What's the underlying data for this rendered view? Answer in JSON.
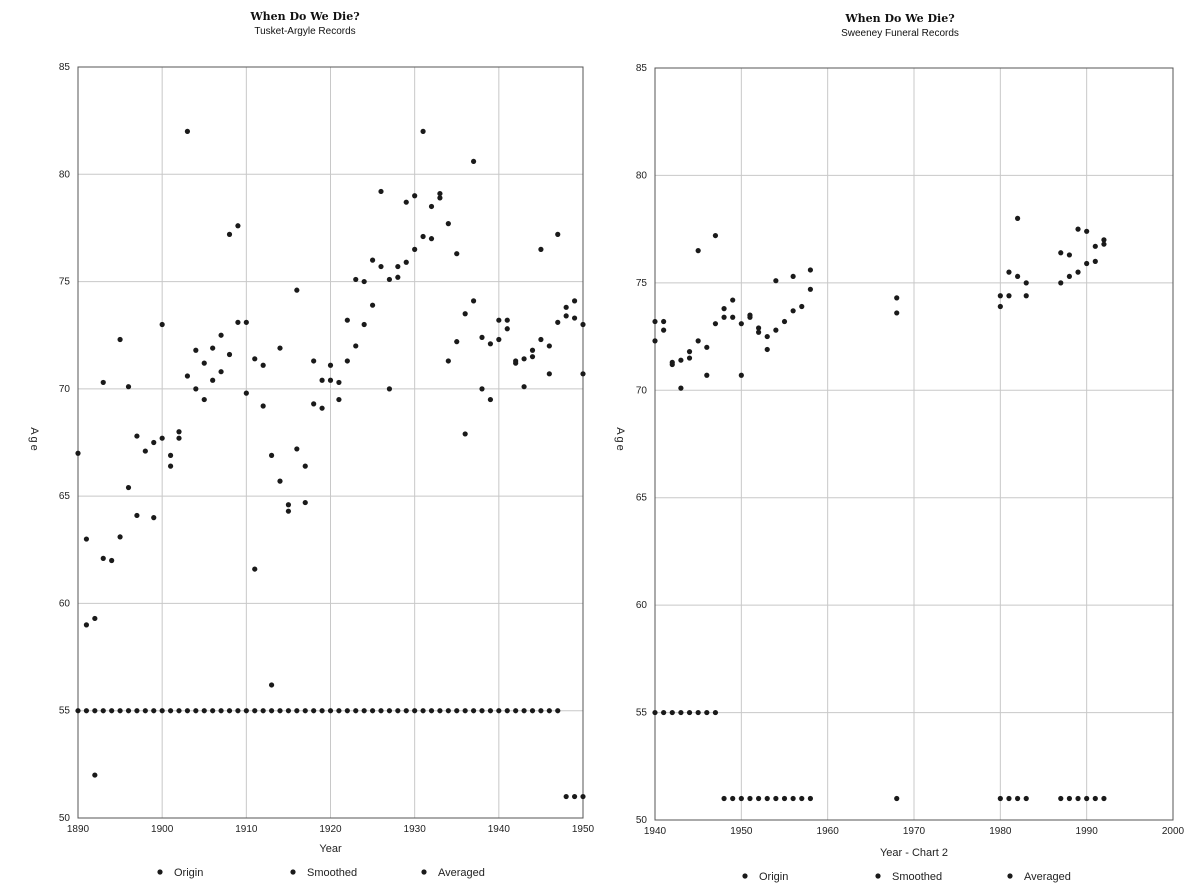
{
  "chart_data": [
    {
      "type": "scatter",
      "title": "When Do We Die?",
      "subtitle": "Tusket-Argyle Records",
      "xlabel": "Year",
      "ylabel": "Age",
      "xlim": [
        1890,
        1950
      ],
      "ylim": [
        50,
        85
      ],
      "xticks": [
        "1890",
        "1900",
        "1910",
        "1920",
        "1930",
        "1940",
        "1950"
      ],
      "yticks": [
        "50",
        "55",
        "60",
        "65",
        "70",
        "75",
        "80",
        "85"
      ],
      "grid": true,
      "legend": {
        "placement": "bottom",
        "entries": [
          "Origin",
          "Smoothed",
          "Averaged"
        ]
      },
      "points": [
        [
          1890,
          67.0
        ],
        [
          1891,
          63.0
        ],
        [
          1891,
          59.0
        ],
        [
          1892,
          59.3
        ],
        [
          1892,
          52.0
        ],
        [
          1893,
          70.3
        ],
        [
          1893,
          62.1
        ],
        [
          1894,
          62.0
        ],
        [
          1895,
          72.3
        ],
        [
          1895,
          63.1
        ],
        [
          1896,
          70.1
        ],
        [
          1896,
          65.4
        ],
        [
          1897,
          67.8
        ],
        [
          1897,
          64.1
        ],
        [
          1898,
          67.1
        ],
        [
          1899,
          67.5
        ],
        [
          1899,
          64.0
        ],
        [
          1900,
          73.0
        ],
        [
          1900,
          67.7
        ],
        [
          1901,
          66.9
        ],
        [
          1901,
          66.4
        ],
        [
          1902,
          68.0
        ],
        [
          1902,
          67.7
        ],
        [
          1903,
          82.0
        ],
        [
          1903,
          70.6
        ],
        [
          1904,
          71.8
        ],
        [
          1904,
          70.0
        ],
        [
          1905,
          71.2
        ],
        [
          1905,
          69.5
        ],
        [
          1906,
          71.9
        ],
        [
          1906,
          70.4
        ],
        [
          1907,
          72.5
        ],
        [
          1907,
          70.8
        ],
        [
          1908,
          77.2
        ],
        [
          1908,
          71.6
        ],
        [
          1909,
          77.6
        ],
        [
          1909,
          73.1
        ],
        [
          1910,
          73.1
        ],
        [
          1910,
          69.8
        ],
        [
          1911,
          71.4
        ],
        [
          1911,
          61.6
        ],
        [
          1912,
          71.1
        ],
        [
          1912,
          69.2
        ],
        [
          1913,
          66.9
        ],
        [
          1913,
          56.2
        ],
        [
          1914,
          71.9
        ],
        [
          1914,
          65.7
        ],
        [
          1915,
          64.6
        ],
        [
          1915,
          64.3
        ],
        [
          1916,
          74.6
        ],
        [
          1916,
          67.2
        ],
        [
          1917,
          66.4
        ],
        [
          1917,
          64.7
        ],
        [
          1918,
          71.3
        ],
        [
          1918,
          69.3
        ],
        [
          1919,
          70.4
        ],
        [
          1919,
          69.1
        ],
        [
          1920,
          71.1
        ],
        [
          1920,
          70.4
        ],
        [
          1921,
          70.3
        ],
        [
          1921,
          69.5
        ],
        [
          1922,
          73.2
        ],
        [
          1922,
          71.3
        ],
        [
          1923,
          75.1
        ],
        [
          1923,
          72.0
        ],
        [
          1924,
          75.0
        ],
        [
          1924,
          73.0
        ],
        [
          1925,
          76.0
        ],
        [
          1925,
          73.9
        ],
        [
          1926,
          79.2
        ],
        [
          1926,
          75.7
        ],
        [
          1927,
          75.1
        ],
        [
          1927,
          70.0
        ],
        [
          1928,
          75.2
        ],
        [
          1928,
          75.7
        ],
        [
          1929,
          78.7
        ],
        [
          1929,
          75.9
        ],
        [
          1930,
          79.0
        ],
        [
          1930,
          76.5
        ],
        [
          1931,
          82.0
        ],
        [
          1931,
          77.1
        ],
        [
          1932,
          78.5
        ],
        [
          1932,
          77.0
        ],
        [
          1933,
          79.1
        ],
        [
          1933,
          78.9
        ],
        [
          1934,
          77.7
        ],
        [
          1934,
          71.3
        ],
        [
          1935,
          76.3
        ],
        [
          1935,
          72.2
        ],
        [
          1936,
          73.5
        ],
        [
          1936,
          67.9
        ],
        [
          1937,
          80.6
        ],
        [
          1937,
          74.1
        ],
        [
          1938,
          72.4
        ],
        [
          1938,
          70.0
        ],
        [
          1939,
          72.1
        ],
        [
          1939,
          69.5
        ],
        [
          1940,
          73.2
        ],
        [
          1940,
          72.3
        ],
        [
          1941,
          73.2
        ],
        [
          1941,
          72.8
        ],
        [
          1942,
          71.3
        ],
        [
          1942,
          71.2
        ],
        [
          1943,
          71.4
        ],
        [
          1943,
          70.1
        ],
        [
          1944,
          71.5
        ],
        [
          1944,
          71.8
        ],
        [
          1945,
          76.5
        ],
        [
          1945,
          72.3
        ],
        [
          1946,
          72.0
        ],
        [
          1946,
          70.7
        ],
        [
          1947,
          77.2
        ],
        [
          1947,
          73.1
        ],
        [
          1948,
          73.8
        ],
        [
          1948,
          73.4
        ],
        [
          1949,
          74.1
        ],
        [
          1949,
          73.3
        ],
        [
          1950,
          73.0
        ],
        [
          1950,
          70.7
        ],
        [
          1890,
          55
        ],
        [
          1891,
          55
        ],
        [
          1892,
          55
        ],
        [
          1893,
          55
        ],
        [
          1894,
          55
        ],
        [
          1895,
          55
        ],
        [
          1896,
          55
        ],
        [
          1897,
          55
        ],
        [
          1898,
          55
        ],
        [
          1899,
          55
        ],
        [
          1900,
          55
        ],
        [
          1901,
          55
        ],
        [
          1902,
          55
        ],
        [
          1903,
          55
        ],
        [
          1904,
          55
        ],
        [
          1905,
          55
        ],
        [
          1906,
          55
        ],
        [
          1907,
          55
        ],
        [
          1908,
          55
        ],
        [
          1909,
          55
        ],
        [
          1910,
          55
        ],
        [
          1911,
          55
        ],
        [
          1912,
          55
        ],
        [
          1913,
          55
        ],
        [
          1914,
          55
        ],
        [
          1915,
          55
        ],
        [
          1916,
          55
        ],
        [
          1917,
          55
        ],
        [
          1918,
          55
        ],
        [
          1919,
          55
        ],
        [
          1920,
          55
        ],
        [
          1921,
          55
        ],
        [
          1922,
          55
        ],
        [
          1923,
          55
        ],
        [
          1924,
          55
        ],
        [
          1925,
          55
        ],
        [
          1926,
          55
        ],
        [
          1927,
          55
        ],
        [
          1928,
          55
        ],
        [
          1929,
          55
        ],
        [
          1930,
          55
        ],
        [
          1931,
          55
        ],
        [
          1932,
          55
        ],
        [
          1933,
          55
        ],
        [
          1934,
          55
        ],
        [
          1935,
          55
        ],
        [
          1936,
          55
        ],
        [
          1937,
          55
        ],
        [
          1938,
          55
        ],
        [
          1939,
          55
        ],
        [
          1940,
          55
        ],
        [
          1941,
          55
        ],
        [
          1942,
          55
        ],
        [
          1943,
          55
        ],
        [
          1944,
          55
        ],
        [
          1945,
          55
        ],
        [
          1946,
          55
        ],
        [
          1947,
          55
        ],
        [
          1948,
          51
        ],
        [
          1949,
          51
        ],
        [
          1950,
          51
        ]
      ]
    },
    {
      "type": "scatter",
      "title": "When Do We Die?",
      "subtitle": "Sweeney Funeral Records",
      "xlabel": "Year - Chart 2",
      "ylabel": "Age",
      "xlim": [
        1940,
        2000
      ],
      "ylim": [
        50,
        85
      ],
      "xticks": [
        "1940",
        "1950",
        "1960",
        "1970",
        "1980",
        "1990",
        "2000"
      ],
      "yticks": [
        "50",
        "55",
        "60",
        "65",
        "70",
        "75",
        "80",
        "85"
      ],
      "grid": true,
      "legend": {
        "placement": "bottom",
        "entries": [
          "Origin",
          "Smoothed",
          "Averaged"
        ]
      },
      "points": [
        [
          1940,
          73.2
        ],
        [
          1940,
          72.3
        ],
        [
          1941,
          73.2
        ],
        [
          1941,
          72.8
        ],
        [
          1942,
          71.3
        ],
        [
          1942,
          71.2
        ],
        [
          1943,
          71.4
        ],
        [
          1943,
          70.1
        ],
        [
          1944,
          71.5
        ],
        [
          1944,
          71.8
        ],
        [
          1945,
          76.5
        ],
        [
          1945,
          72.3
        ],
        [
          1946,
          72.0
        ],
        [
          1946,
          70.7
        ],
        [
          1947,
          77.2
        ],
        [
          1947,
          73.1
        ],
        [
          1948,
          73.8
        ],
        [
          1948,
          73.4
        ],
        [
          1949,
          74.2
        ],
        [
          1949,
          73.4
        ],
        [
          1950,
          73.1
        ],
        [
          1950,
          70.7
        ],
        [
          1951,
          73.5
        ],
        [
          1951,
          73.4
        ],
        [
          1952,
          72.9
        ],
        [
          1952,
          72.7
        ],
        [
          1953,
          72.5
        ],
        [
          1953,
          71.9
        ],
        [
          1954,
          75.1
        ],
        [
          1954,
          72.8
        ],
        [
          1955,
          73.2
        ],
        [
          1956,
          75.3
        ],
        [
          1956,
          73.7
        ],
        [
          1957,
          73.9
        ],
        [
          1958,
          75.6
        ],
        [
          1958,
          74.7
        ],
        [
          1968,
          74.3
        ],
        [
          1968,
          73.6
        ],
        [
          1980,
          74.4
        ],
        [
          1980,
          73.9
        ],
        [
          1981,
          75.5
        ],
        [
          1981,
          74.4
        ],
        [
          1982,
          78.0
        ],
        [
          1982,
          75.3
        ],
        [
          1983,
          75.0
        ],
        [
          1983,
          74.4
        ],
        [
          1987,
          76.4
        ],
        [
          1987,
          75.0
        ],
        [
          1988,
          76.3
        ],
        [
          1988,
          75.3
        ],
        [
          1989,
          77.5
        ],
        [
          1989,
          75.5
        ],
        [
          1990,
          77.4
        ],
        [
          1990,
          75.9
        ],
        [
          1991,
          76.7
        ],
        [
          1991,
          76.0
        ],
        [
          1992,
          77.0
        ],
        [
          1992,
          76.8
        ],
        [
          1940,
          55
        ],
        [
          1941,
          55
        ],
        [
          1942,
          55
        ],
        [
          1943,
          55
        ],
        [
          1944,
          55
        ],
        [
          1945,
          55
        ],
        [
          1946,
          55
        ],
        [
          1947,
          55
        ],
        [
          1948,
          51
        ],
        [
          1949,
          51
        ],
        [
          1950,
          51
        ],
        [
          1951,
          51
        ],
        [
          1952,
          51
        ],
        [
          1953,
          51
        ],
        [
          1954,
          51
        ],
        [
          1955,
          51
        ],
        [
          1956,
          51
        ],
        [
          1957,
          51
        ],
        [
          1958,
          51
        ],
        [
          1968,
          51
        ],
        [
          1980,
          51
        ],
        [
          1981,
          51
        ],
        [
          1982,
          51
        ],
        [
          1983,
          51
        ],
        [
          1987,
          51
        ],
        [
          1988,
          51
        ],
        [
          1989,
          51
        ],
        [
          1990,
          51
        ],
        [
          1991,
          51
        ],
        [
          1992,
          51
        ]
      ]
    }
  ]
}
